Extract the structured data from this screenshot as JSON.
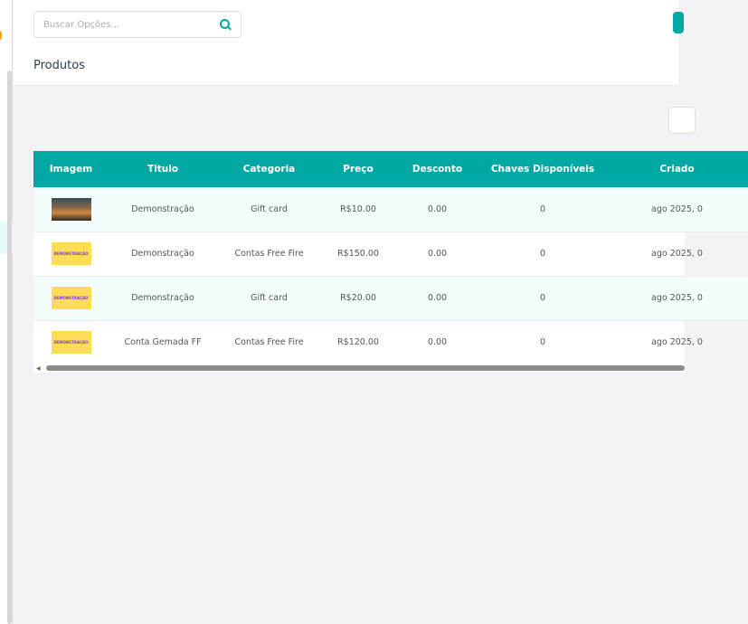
{
  "search": {
    "placeholder": "Buscar Opções..."
  },
  "page": {
    "title": "Produtos"
  },
  "table": {
    "columns": [
      "Imagem",
      "Titulo",
      "Categoria",
      "Preço",
      "Desconto",
      "Chaves Disponíveis",
      "Criado"
    ],
    "rows": [
      {
        "image": "photo",
        "image_text": "",
        "titulo": "Demonstração",
        "categoria": "Gift card",
        "preco": "R$10.00",
        "desconto": "0.00",
        "chaves": "0",
        "criado": "ago 2025, 0"
      },
      {
        "image": "demo",
        "image_text": "DEMONSTRAÇÃO",
        "titulo": "Demonstração",
        "categoria": "Contas Free Fire",
        "preco": "R$150.00",
        "desconto": "0.00",
        "chaves": "0",
        "criado": "ago 2025, 0"
      },
      {
        "image": "demo",
        "image_text": "DEMONSTRAÇÃO",
        "titulo": "Demonstração",
        "categoria": "Gift card",
        "preco": "R$20.00",
        "desconto": "0.00",
        "chaves": "0",
        "criado": "ago 2025, 0"
      },
      {
        "image": "demo",
        "image_text": "DEMONSTRAÇÃO",
        "titulo": "Conta Gemada FF",
        "categoria": "Contas Free Fire",
        "preco": "R$120.00",
        "desconto": "0.00",
        "chaves": "0",
        "criado": "ago 2025, 0"
      }
    ]
  },
  "colors": {
    "accent": "#00a8a4",
    "demo_thumb": "#ffdc55"
  }
}
